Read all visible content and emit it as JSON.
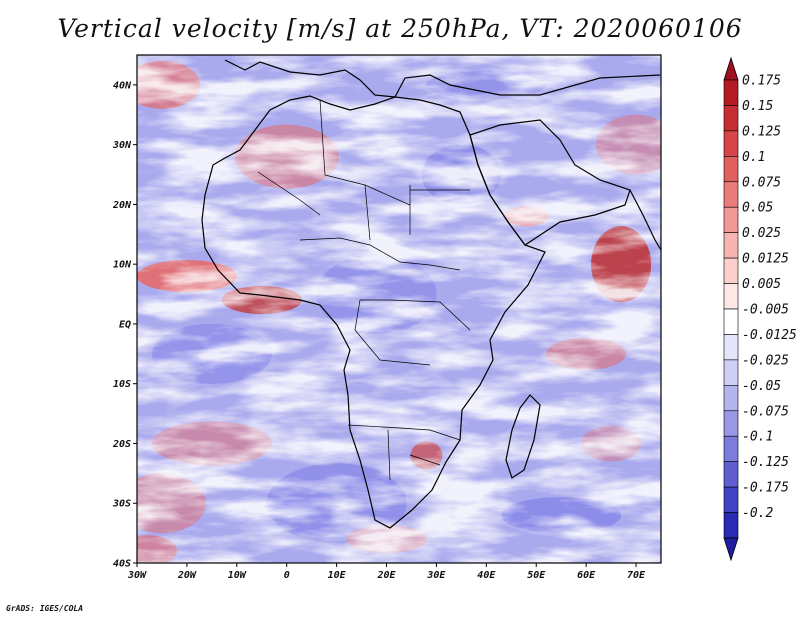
{
  "title": "Vertical velocity [m/s] at 250hPa, VT: 2020060106",
  "credit": "GrADS: IGES/COLA",
  "map": {
    "lon_range": [
      -30,
      75
    ],
    "lat_range": [
      -40,
      45
    ],
    "lon_ticks": [
      {
        "value": -30,
        "label": "30W"
      },
      {
        "value": -20,
        "label": "20W"
      },
      {
        "value": -10,
        "label": "10W"
      },
      {
        "value": 0,
        "label": "0"
      },
      {
        "value": 10,
        "label": "10E"
      },
      {
        "value": 20,
        "label": "20E"
      },
      {
        "value": 30,
        "label": "30E"
      },
      {
        "value": 40,
        "label": "40E"
      },
      {
        "value": 50,
        "label": "50E"
      },
      {
        "value": 60,
        "label": "60E"
      },
      {
        "value": 70,
        "label": "70E"
      }
    ],
    "lat_ticks": [
      {
        "value": 40,
        "label": "40N"
      },
      {
        "value": 30,
        "label": "30N"
      },
      {
        "value": 20,
        "label": "20N"
      },
      {
        "value": 10,
        "label": "10N"
      },
      {
        "value": 0,
        "label": "EQ"
      },
      {
        "value": -10,
        "label": "10S"
      },
      {
        "value": -20,
        "label": "20S"
      },
      {
        "value": -30,
        "label": "30S"
      },
      {
        "value": -40,
        "label": "40S"
      }
    ]
  },
  "colorbar": {
    "levels": [
      {
        "label": "0.175",
        "color": "#b41a24"
      },
      {
        "label": "0.15",
        "color": "#c72e34"
      },
      {
        "label": "0.125",
        "color": "#d64548"
      },
      {
        "label": "0.1",
        "color": "#e0605f"
      },
      {
        "label": "0.075",
        "color": "#ea7c79"
      },
      {
        "label": "0.05",
        "color": "#f29894"
      },
      {
        "label": "0.025",
        "color": "#f7b4b0"
      },
      {
        "label": "0.0125",
        "color": "#fbcfcc"
      },
      {
        "label": "0.005",
        "color": "#fde8e6"
      },
      {
        "label": "-0.005",
        "color": "#ffffff"
      },
      {
        "label": "-0.0125",
        "color": "#e6e6fb"
      },
      {
        "label": "-0.025",
        "color": "#cfcff5"
      },
      {
        "label": "-0.05",
        "color": "#b4b4ee"
      },
      {
        "label": "-0.075",
        "color": "#9898e6"
      },
      {
        "label": "-0.1",
        "color": "#7c7cdd"
      },
      {
        "label": "-0.125",
        "color": "#5f5fd2"
      },
      {
        "label": "-0.175",
        "color": "#4242c4"
      },
      {
        "label": "-0.2",
        "color": "#2a2ab4"
      }
    ],
    "top_color": "#a01020",
    "bottom_color": "#1e1ea0"
  },
  "colors": {
    "sinking": "#7a7ae6",
    "rising": "#e66a6a",
    "coast": "#000000"
  }
}
